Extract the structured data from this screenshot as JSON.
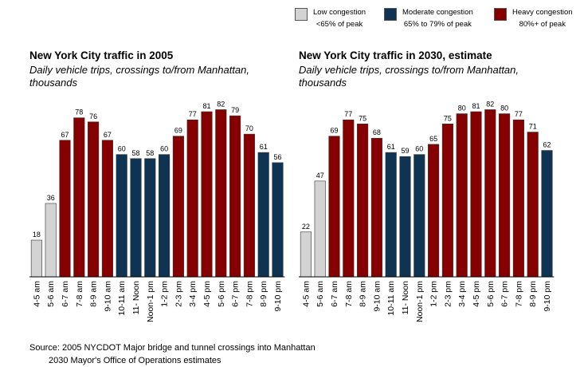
{
  "legend": {
    "items": [
      {
        "line1": "Low congestion",
        "line2": "<65% of peak",
        "color": "#d3d3d3"
      },
      {
        "line1": "Moderate congestion",
        "line2": "65% to 79% of peak",
        "color": "#0f3453"
      },
      {
        "line1": "Heavy congestion",
        "line2": "80%+ of peak",
        "color": "#860000"
      }
    ]
  },
  "chart_data": [
    {
      "type": "bar",
      "title": "New York City traffic in 2005",
      "subtitle": "Daily vehicle trips, crossings to/from Manhattan, thousands",
      "categories": [
        "4-5 am",
        "5-6 am",
        "6-7 am",
        "7-8 am",
        "8-9 am",
        "9-10 am",
        "10-11 am",
        "11- Noon",
        "Noon-1 pm",
        "1-2 pm",
        "2-3 pm",
        "3-4 pm",
        "4-5 pm",
        "5-6 pm",
        "6-7 pm",
        "7-8 pm",
        "8-9 pm",
        "9-10 pm"
      ],
      "values": [
        18,
        36,
        67,
        78,
        76,
        67,
        60,
        58,
        58,
        60,
        69,
        77,
        81,
        82,
        79,
        70,
        61,
        56
      ],
      "congestion": [
        "low",
        "low",
        "heavy",
        "heavy",
        "heavy",
        "heavy",
        "moderate",
        "moderate",
        "moderate",
        "moderate",
        "heavy",
        "heavy",
        "heavy",
        "heavy",
        "heavy",
        "heavy",
        "moderate",
        "moderate"
      ],
      "ylim": [
        0,
        90
      ]
    },
    {
      "type": "bar",
      "title": "New York City traffic in 2030, estimate",
      "subtitle": "Daily vehicle trips, crossings to/from Manhattan, thousands",
      "categories": [
        "4-5 am",
        "5-6 am",
        "6-7 am",
        "7-8 am",
        "8-9 am",
        "9-10 am",
        "10-11 am",
        "11- Noon",
        "Noon-1 pm",
        "1-2 pm",
        "2-3 pm",
        "3-4 pm",
        "4-5 pm",
        "5-6 pm",
        "6-7 pm",
        "7-8 pm",
        "8-9 pm",
        "9-10 pm"
      ],
      "values": [
        22,
        47,
        69,
        77,
        75,
        68,
        61,
        59,
        60,
        65,
        75,
        80,
        81,
        82,
        80,
        77,
        71,
        62
      ],
      "congestion": [
        "low",
        "low",
        "heavy",
        "heavy",
        "heavy",
        "heavy",
        "moderate",
        "moderate",
        "moderate",
        "heavy",
        "heavy",
        "heavy",
        "heavy",
        "heavy",
        "heavy",
        "heavy",
        "heavy",
        "moderate"
      ],
      "ylim": [
        0,
        90
      ]
    }
  ],
  "colors": {
    "low": "#d3d3d3",
    "moderate": "#0f3453",
    "heavy": "#860000"
  },
  "source": {
    "line1": "Source: 2005 NYCDOT Major bridge and tunnel crossings into Manhattan",
    "line2": "2030 Mayor's Office of Operations estimates"
  }
}
